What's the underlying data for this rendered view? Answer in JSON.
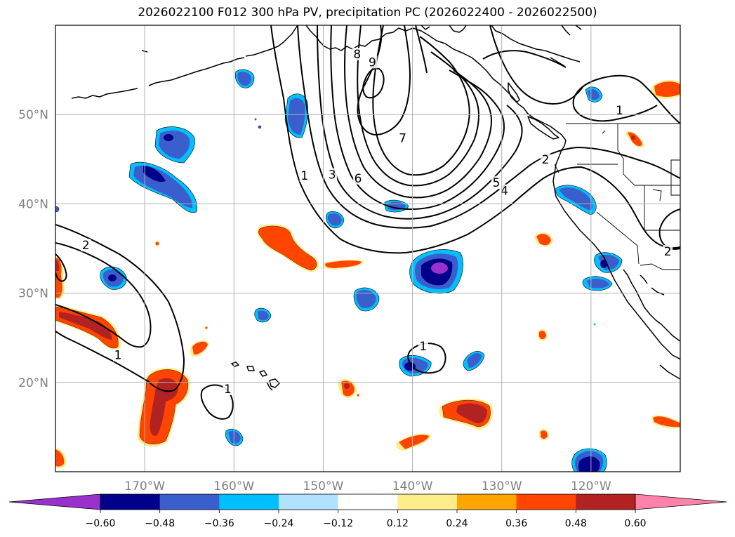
{
  "title": "2026022100 F012 300 hPa PV, precipitation PC (2026022400 - 2026022500)",
  "map": {
    "lon_range": [
      -180,
      -110
    ],
    "lat_range": [
      10,
      60
    ],
    "lon_ticks": [
      {
        "lon": -170,
        "label": "170°W"
      },
      {
        "lon": -160,
        "label": "160°W"
      },
      {
        "lon": -150,
        "label": "150°W"
      },
      {
        "lon": -140,
        "label": "140°W"
      },
      {
        "lon": -130,
        "label": "130°W"
      },
      {
        "lon": -120,
        "label": "120°W"
      }
    ],
    "lat_ticks": [
      {
        "lat": 20,
        "label": "20°N"
      },
      {
        "lat": 30,
        "label": "30°N"
      },
      {
        "lat": 40,
        "label": "40°N"
      },
      {
        "lat": 50,
        "label": "50°N"
      }
    ],
    "grid": true
  },
  "colorbar": {
    "levels": [
      "−0.60",
      "−0.48",
      "−0.36",
      "−0.24",
      "−0.12",
      "0.12",
      "0.24",
      "0.36",
      "0.48",
      "0.60"
    ],
    "colors": [
      "#9932CC",
      "#00008B",
      "#3A5FCD",
      "#00BFFF",
      "#B0E2FF",
      "#FFFFFF",
      "#FFEC8B",
      "#FFA500",
      "#FF4500",
      "#B22222",
      "#FF82AB"
    ],
    "extend": "both"
  },
  "contour_labels": [
    {
      "text": "8",
      "lon": -146.2,
      "lat": 56.7
    },
    {
      "text": "9",
      "lon": -144.5,
      "lat": 55.8
    },
    {
      "text": "7",
      "lon": -141.1,
      "lat": 47.3
    },
    {
      "text": "6",
      "lon": -146.1,
      "lat": 42.8
    },
    {
      "text": "5",
      "lon": -130.6,
      "lat": 42.3
    },
    {
      "text": "4",
      "lon": -129.7,
      "lat": 41.4
    },
    {
      "text": "3",
      "lon": -149.0,
      "lat": 43.2
    },
    {
      "text": "2",
      "lon": -125.1,
      "lat": 44.9
    },
    {
      "text": "1",
      "lon": -152.1,
      "lat": 43.1
    },
    {
      "text": "1",
      "lon": -116.8,
      "lat": 50.4
    },
    {
      "text": "2",
      "lon": -111.4,
      "lat": 34.6
    },
    {
      "text": "2",
      "lon": -176.6,
      "lat": 35.3
    },
    {
      "text": "1",
      "lon": -173.0,
      "lat": 23.0
    },
    {
      "text": "1",
      "lon": -160.7,
      "lat": 19.2
    },
    {
      "text": "1",
      "lon": -138.8,
      "lat": 24.0
    }
  ]
}
